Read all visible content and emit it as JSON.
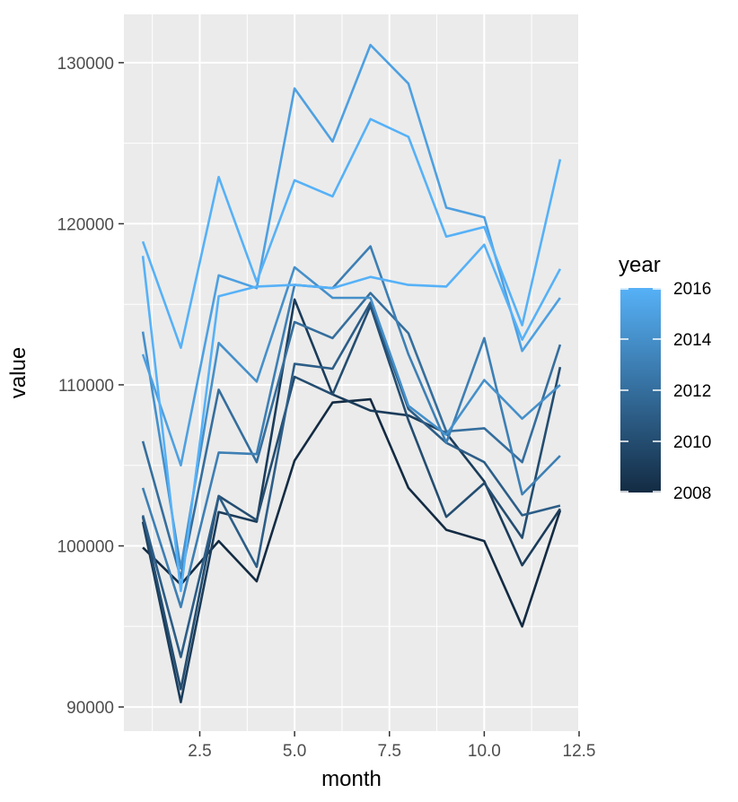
{
  "chart_data": {
    "type": "line",
    "xlabel": "month",
    "ylabel": "value",
    "xlim": [
      0.5,
      12.5
    ],
    "ylim": [
      88500,
      133000
    ],
    "x_ticks": [
      2.5,
      5.0,
      7.5,
      10.0,
      12.5
    ],
    "x_tick_labels": [
      "2.5",
      "5.0",
      "7.5",
      "10.0",
      "12.5"
    ],
    "y_ticks": [
      90000,
      100000,
      110000,
      120000,
      130000
    ],
    "y_tick_labels": [
      "90000",
      "100000",
      "110000",
      "120000",
      "130000"
    ],
    "grid": true,
    "legend": {
      "title": "year",
      "type": "colorbar",
      "position": "right",
      "range": [
        2008,
        2016
      ],
      "ticks": [
        2008,
        2010,
        2012,
        2014,
        2016
      ],
      "tick_labels": [
        "2008",
        "2010",
        "2012",
        "2014",
        "2016"
      ],
      "low_color": "#132B43",
      "high_color": "#56B1F7"
    },
    "x": [
      1,
      2,
      3,
      4,
      5,
      6,
      7,
      8,
      9,
      10,
      11,
      12
    ],
    "series": [
      {
        "year": 2008,
        "values": [
          99900,
          97600,
          100300,
          97800,
          105300,
          108900,
          109100,
          103600,
          101000,
          100300,
          95000,
          102200
        ]
      },
      {
        "year": 2009,
        "values": [
          101500,
          90300,
          102100,
          101500,
          115300,
          109400,
          108400,
          108100,
          107000,
          104000,
          98800,
          102300
        ]
      },
      {
        "year": 2010,
        "values": [
          101800,
          91100,
          103100,
          101600,
          110500,
          109400,
          114900,
          107800,
          101800,
          103900,
          100500,
          111100
        ]
      },
      {
        "year": 2011,
        "values": [
          101900,
          93100,
          103100,
          98700,
          111300,
          111000,
          115100,
          108500,
          106400,
          105200,
          101900,
          102500
        ]
      },
      {
        "year": 2012,
        "values": [
          106500,
          98000,
          109700,
          105200,
          113900,
          112900,
          115700,
          113200,
          107100,
          107300,
          105200,
          112500
        ]
      },
      {
        "year": 2013,
        "values": [
          103600,
          96200,
          105800,
          105700,
          116200,
          116000,
          118600,
          111900,
          106400,
          112900,
          103200,
          105600
        ]
      },
      {
        "year": 2014,
        "values": [
          113300,
          98600,
          112600,
          110200,
          117300,
          115400,
          115400,
          108700,
          106900,
          110300,
          107900,
          110000
        ]
      },
      {
        "year": 2015,
        "values": [
          111900,
          105000,
          116800,
          116000,
          128400,
          125100,
          131100,
          128700,
          121000,
          120400,
          112100,
          115400
        ]
      },
      {
        "year": 2016,
        "values": [
          118000,
          97200,
          115500,
          116100,
          116200,
          116000,
          116700,
          116200,
          116100,
          118700,
          112800,
          117200
        ]
      },
      {
        "year": 2016,
        "values": [
          118900,
          112300,
          122900,
          116400,
          122700,
          121700,
          126500,
          125400,
          119200,
          119800,
          113700,
          124000
        ]
      }
    ]
  }
}
